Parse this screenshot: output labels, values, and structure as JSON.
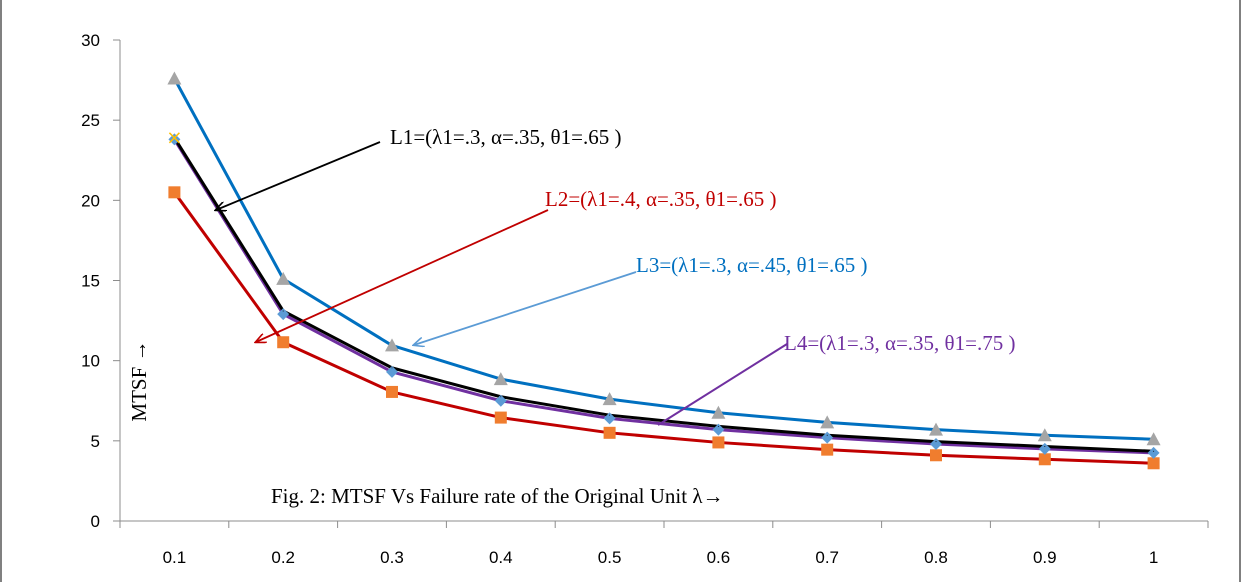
{
  "chart_data": {
    "type": "line",
    "caption": "Fig. 2: MTSF Vs Failure rate of the Original Unit λ→",
    "ylabel": "MTSF →",
    "xlabel": "",
    "categories": [
      "0.1",
      "0.2",
      "0.3",
      "0.4",
      "0.5",
      "0.6",
      "0.7",
      "0.8",
      "0.9",
      "1"
    ],
    "ylim": [
      0,
      30
    ],
    "yticks": [
      "0",
      "5",
      "10",
      "15",
      "20",
      "25",
      "30"
    ],
    "grid": false,
    "series": [
      {
        "name": "L1=(λ1=.3, α=.35, θ1=.65 )",
        "color": "#000000",
        "marker": "none",
        "marker_color": "#000000",
        "values": [
          23.9,
          13.1,
          9.55,
          7.75,
          6.6,
          5.9,
          5.35,
          4.95,
          4.65,
          4.35
        ]
      },
      {
        "name": "L2=(λ1=.4, α=.35, θ1=.65 )",
        "color": "#c00000",
        "marker": "square",
        "marker_color": "#f07d2e",
        "values": [
          20.5,
          11.15,
          8.05,
          6.45,
          5.5,
          4.9,
          4.45,
          4.1,
          3.85,
          3.6
        ]
      },
      {
        "name": "L3=(λ1=.3, α=.45, θ1=.65 )",
        "color": "#0070c0",
        "marker": "triangle",
        "marker_color": "#a5a5a5",
        "values": [
          27.6,
          15.1,
          10.95,
          8.85,
          7.6,
          6.75,
          6.15,
          5.7,
          5.35,
          5.1
        ]
      },
      {
        "name": "L4=(λ1=.3, α=.35, θ1=.75 )",
        "color": "#7030a0",
        "marker": "diamond",
        "marker_color": "#5b9bd5",
        "values": [
          23.8,
          12.9,
          9.3,
          7.5,
          6.4,
          5.7,
          5.2,
          4.8,
          4.5,
          4.25
        ]
      }
    ],
    "annotations": [
      {
        "text": "L1=(λ1=.3, α=.35, θ1=.65 )",
        "color": "#000000"
      },
      {
        "text": "L2=(λ1=.4, α=.35, θ1=.65 )",
        "color": "#c00000"
      },
      {
        "text": "L3=(λ1=.3, α=.45, θ1=.65 )",
        "color": "#0070c0"
      },
      {
        "text": "L4=(λ1=.3, α=.35, θ1=.75 )",
        "color": "#7030a0"
      }
    ]
  }
}
